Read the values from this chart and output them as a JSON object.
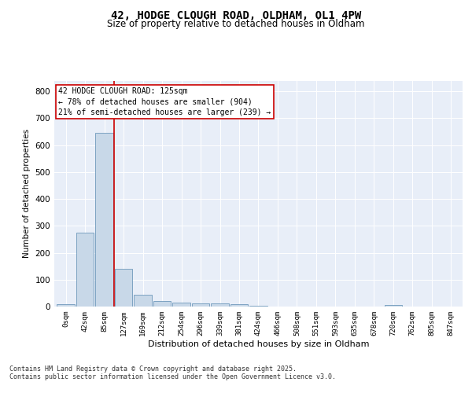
{
  "title_line1": "42, HODGE CLOUGH ROAD, OLDHAM, OL1 4PW",
  "title_line2": "Size of property relative to detached houses in Oldham",
  "xlabel": "Distribution of detached houses by size in Oldham",
  "ylabel": "Number of detached properties",
  "annotation_line1": "42 HODGE CLOUGH ROAD: 125sqm",
  "annotation_line2": "← 78% of detached houses are smaller (904)",
  "annotation_line3": "21% of semi-detached houses are larger (239) →",
  "bar_color": "#c8d8e8",
  "bar_edge_color": "#5a8ab0",
  "vline_color": "#cc0000",
  "vline_x_bar_index": 2.5,
  "annotation_box_color": "#cc0000",
  "background_color": "#e8eef8",
  "tick_labels": [
    "0sqm",
    "42sqm",
    "85sqm",
    "127sqm",
    "169sqm",
    "212sqm",
    "254sqm",
    "296sqm",
    "339sqm",
    "381sqm",
    "424sqm",
    "466sqm",
    "508sqm",
    "551sqm",
    "593sqm",
    "635sqm",
    "678sqm",
    "720sqm",
    "762sqm",
    "805sqm",
    "847sqm"
  ],
  "bar_heights": [
    8,
    275,
    645,
    140,
    45,
    20,
    14,
    12,
    12,
    8,
    2,
    1,
    1,
    0,
    0,
    0,
    0,
    5,
    0,
    0,
    0
  ],
  "ylim": [
    0,
    840
  ],
  "yticks": [
    0,
    100,
    200,
    300,
    400,
    500,
    600,
    700,
    800
  ],
  "footnote1": "Contains HM Land Registry data © Crown copyright and database right 2025.",
  "footnote2": "Contains public sector information licensed under the Open Government Licence v3.0."
}
